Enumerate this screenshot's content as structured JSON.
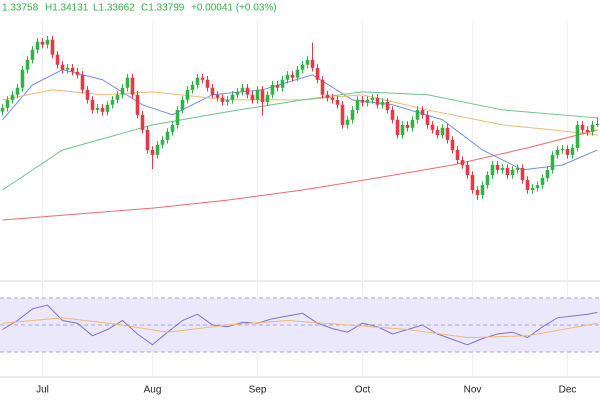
{
  "header": [
    "1.33758",
    "H1.34131",
    "L1.33662",
    "C1.33799",
    "+0.00041 (+0.03%)"
  ],
  "chart_data": [
    {
      "type": "candlestick",
      "up_color": "#2fb344",
      "down_color": "#e53945",
      "xticks": [
        {
          "value": 8,
          "label": "Jul"
        },
        {
          "value": 30,
          "label": "Aug"
        },
        {
          "value": 51,
          "label": "Sep"
        },
        {
          "value": 72,
          "label": "Oct"
        },
        {
          "value": 94,
          "label": "Nov"
        },
        {
          "value": 113,
          "label": "Dec"
        }
      ],
      "open": [
        1.344,
        1.3458,
        1.3497,
        1.3522,
        1.3556,
        1.3644,
        1.3692,
        1.3741,
        1.378,
        1.3766,
        1.379,
        1.3717,
        1.3668,
        1.3644,
        1.3653,
        1.3634,
        1.3619,
        1.3546,
        1.3497,
        1.3448,
        1.3458,
        1.3439,
        1.3473,
        1.3497,
        1.3522,
        1.3556,
        1.3605,
        1.3522,
        1.3424,
        1.3351,
        1.3253,
        1.3229,
        1.3278,
        1.3302,
        1.3341,
        1.3375,
        1.3448,
        1.3497,
        1.3546,
        1.357,
        1.3605,
        1.3595,
        1.3556,
        1.3522,
        1.3507,
        1.3487,
        1.3497,
        1.3522,
        1.3536,
        1.3556,
        1.3522,
        1.3497,
        1.3546,
        1.3487,
        1.3522,
        1.357,
        1.3556,
        1.3595,
        1.3619,
        1.3605,
        1.3644,
        1.3668,
        1.3692,
        1.3653,
        1.3595,
        1.3522,
        1.3507,
        1.3497,
        1.3473,
        1.3375,
        1.34,
        1.3448,
        1.3497,
        1.3483,
        1.3497,
        1.3507,
        1.3473,
        1.3487,
        1.3448,
        1.34,
        1.3326,
        1.3375,
        1.3361,
        1.34,
        1.3448,
        1.3424,
        1.3375,
        1.3351,
        1.3326,
        1.3361,
        1.3302,
        1.3253,
        1.3204,
        1.318,
        1.3131,
        1.3058,
        1.3034,
        1.3082,
        1.3131,
        1.318,
        1.3156,
        1.3165,
        1.3131,
        1.3156,
        1.3165,
        1.3107,
        1.3058,
        1.3068,
        1.3082,
        1.3117,
        1.3156,
        1.3229,
        1.3253,
        1.3258,
        1.3229,
        1.3263,
        1.3375,
        1.3351,
        1.3341,
        1.33758
      ],
      "high": [
        1.3476,
        1.3515,
        1.354,
        1.3574,
        1.3662,
        1.371,
        1.3759,
        1.3798,
        1.3798,
        1.3808,
        1.3808,
        1.3735,
        1.3686,
        1.3671,
        1.3671,
        1.3652,
        1.3637,
        1.3564,
        1.3515,
        1.3476,
        1.3476,
        1.3491,
        1.3515,
        1.354,
        1.3574,
        1.3623,
        1.3623,
        1.354,
        1.3442,
        1.3369,
        1.3271,
        1.3296,
        1.332,
        1.3359,
        1.3393,
        1.3466,
        1.3515,
        1.3564,
        1.3588,
        1.3623,
        1.3623,
        1.3613,
        1.3574,
        1.354,
        1.3525,
        1.3515,
        1.354,
        1.3554,
        1.3574,
        1.3574,
        1.354,
        1.3564,
        1.3564,
        1.354,
        1.3588,
        1.3588,
        1.3613,
        1.3637,
        1.3637,
        1.3662,
        1.3686,
        1.371,
        1.3776,
        1.3671,
        1.3613,
        1.354,
        1.3525,
        1.3515,
        1.3491,
        1.3418,
        1.3466,
        1.3515,
        1.3515,
        1.3515,
        1.3525,
        1.3525,
        1.3505,
        1.3505,
        1.3466,
        1.3418,
        1.3393,
        1.3393,
        1.3418,
        1.3466,
        1.3466,
        1.3442,
        1.3393,
        1.3369,
        1.3379,
        1.3379,
        1.332,
        1.3271,
        1.3222,
        1.3198,
        1.3149,
        1.3076,
        1.31,
        1.3149,
        1.3198,
        1.3198,
        1.3183,
        1.3183,
        1.3174,
        1.3183,
        1.3183,
        1.3125,
        1.3086,
        1.31,
        1.3135,
        1.3174,
        1.3247,
        1.3271,
        1.3276,
        1.3276,
        1.3281,
        1.3393,
        1.3393,
        1.3369,
        1.3394,
        1.34131
      ],
      "low": [
        1.3422,
        1.344,
        1.3479,
        1.3504,
        1.3538,
        1.3626,
        1.3674,
        1.3723,
        1.3748,
        1.3748,
        1.3699,
        1.365,
        1.3626,
        1.3626,
        1.3616,
        1.3601,
        1.3528,
        1.3479,
        1.343,
        1.343,
        1.3421,
        1.3421,
        1.3455,
        1.3479,
        1.3504,
        1.3538,
        1.3504,
        1.3406,
        1.3333,
        1.3235,
        1.316,
        1.3211,
        1.326,
        1.3284,
        1.3323,
        1.3357,
        1.343,
        1.3479,
        1.3528,
        1.3552,
        1.3577,
        1.3538,
        1.3504,
        1.3489,
        1.3469,
        1.3469,
        1.3479,
        1.3504,
        1.3518,
        1.3504,
        1.3479,
        1.3479,
        1.342,
        1.3469,
        1.3504,
        1.3538,
        1.3538,
        1.3577,
        1.3587,
        1.3587,
        1.3626,
        1.365,
        1.3635,
        1.3577,
        1.3504,
        1.3489,
        1.3479,
        1.3455,
        1.3357,
        1.3357,
        1.3382,
        1.343,
        1.3465,
        1.3465,
        1.3479,
        1.3455,
        1.3455,
        1.343,
        1.3382,
        1.3308,
        1.3308,
        1.3343,
        1.3343,
        1.3382,
        1.3406,
        1.3357,
        1.3333,
        1.3308,
        1.3308,
        1.3284,
        1.3235,
        1.3186,
        1.3162,
        1.3113,
        1.304,
        1.301,
        1.3016,
        1.3064,
        1.3113,
        1.3138,
        1.3138,
        1.3113,
        1.3113,
        1.3138,
        1.3089,
        1.304,
        1.304,
        1.305,
        1.3064,
        1.3099,
        1.3138,
        1.3211,
        1.3235,
        1.3211,
        1.3211,
        1.3245,
        1.3333,
        1.3323,
        1.3323,
        1.33662
      ],
      "close": [
        1.3458,
        1.3497,
        1.3522,
        1.3556,
        1.3644,
        1.3692,
        1.3741,
        1.378,
        1.3766,
        1.379,
        1.3717,
        1.3668,
        1.3644,
        1.3653,
        1.3634,
        1.3619,
        1.3546,
        1.3497,
        1.3448,
        1.3458,
        1.3439,
        1.3473,
        1.3497,
        1.3522,
        1.3556,
        1.3605,
        1.3522,
        1.3424,
        1.3351,
        1.3253,
        1.3229,
        1.3278,
        1.3302,
        1.3341,
        1.3375,
        1.3448,
        1.3497,
        1.3546,
        1.357,
        1.3605,
        1.3595,
        1.3556,
        1.3522,
        1.3507,
        1.3487,
        1.3497,
        1.3522,
        1.3536,
        1.3556,
        1.3522,
        1.3497,
        1.3546,
        1.3487,
        1.3522,
        1.357,
        1.3556,
        1.3595,
        1.3619,
        1.3605,
        1.3644,
        1.3668,
        1.3692,
        1.3653,
        1.3595,
        1.3522,
        1.3507,
        1.3497,
        1.3473,
        1.3375,
        1.34,
        1.3448,
        1.3497,
        1.3483,
        1.3497,
        1.3507,
        1.3473,
        1.3487,
        1.3448,
        1.34,
        1.3326,
        1.3375,
        1.3361,
        1.34,
        1.3448,
        1.3424,
        1.3375,
        1.3351,
        1.3326,
        1.3361,
        1.3302,
        1.3253,
        1.3204,
        1.318,
        1.3131,
        1.3058,
        1.3034,
        1.3082,
        1.3131,
        1.318,
        1.3156,
        1.3165,
        1.3131,
        1.3156,
        1.3165,
        1.3107,
        1.3058,
        1.3068,
        1.3082,
        1.3117,
        1.3156,
        1.3229,
        1.3253,
        1.3258,
        1.3229,
        1.3263,
        1.3375,
        1.3351,
        1.3341,
        1.33758,
        1.33799
      ],
      "series": [
        {
          "color": "#6f8ee8",
          "x": [
            0,
            6,
            12,
            20,
            28,
            34,
            42,
            52,
            62,
            70,
            78,
            88,
            96,
            104,
            112,
            119
          ],
          "values": [
            1.34,
            1.357,
            1.3644,
            1.3595,
            1.3473,
            1.3424,
            1.3522,
            1.3546,
            1.3619,
            1.3497,
            1.3473,
            1.34,
            1.3253,
            1.3156,
            1.318,
            1.3253
          ]
        },
        {
          "color": "#f2b872",
          "x": [
            0,
            10,
            20,
            30,
            45,
            60,
            72,
            85,
            100,
            110,
            119
          ],
          "values": [
            1.3497,
            1.3546,
            1.3522,
            1.3536,
            1.3497,
            1.3497,
            1.3522,
            1.3448,
            1.3375,
            1.3351,
            1.3326
          ]
        },
        {
          "color": "#6cc38a",
          "x": [
            0,
            12,
            30,
            45,
            60,
            72,
            85,
            100,
            119
          ],
          "values": [
            1.3058,
            1.3253,
            1.3375,
            1.3439,
            1.3497,
            1.3536,
            1.3522,
            1.3448,
            1.3409
          ]
        },
        {
          "color": "#ef6a6a",
          "x": [
            0,
            30,
            45,
            60,
            75,
            90,
            105,
            119
          ],
          "values": [
            1.2912,
            1.297,
            1.3009,
            1.3058,
            1.3117,
            1.318,
            1.3263,
            1.3351
          ]
        }
      ]
    },
    {
      "type": "line",
      "ylim": [
        0,
        100
      ],
      "levels": [
        20,
        50,
        80
      ],
      "band_color": "#ece8fb",
      "series": [
        {
          "color": "#7d6fd6",
          "x": [
            0,
            3,
            6,
            9,
            12,
            15,
            18,
            21,
            24,
            27,
            30,
            33,
            36,
            39,
            42,
            45,
            48,
            51,
            54,
            57,
            60,
            63,
            66,
            69,
            72,
            75,
            78,
            81,
            84,
            87,
            90,
            93,
            96,
            99,
            102,
            105,
            108,
            111,
            114,
            117,
            119
          ],
          "values": [
            45,
            55,
            68,
            72,
            55,
            52,
            38,
            45,
            55,
            40,
            28,
            42,
            55,
            62,
            50,
            48,
            53,
            52,
            57,
            60,
            63,
            52,
            46,
            42,
            52,
            48,
            40,
            45,
            50,
            40,
            34,
            28,
            35,
            40,
            42,
            36,
            48,
            58,
            60,
            62,
            64
          ]
        },
        {
          "color": "#f2b872",
          "x": [
            0,
            12,
            24,
            33,
            45,
            57,
            69,
            81,
            93,
            105,
            119
          ],
          "values": [
            52,
            58,
            50,
            42,
            50,
            55,
            50,
            45,
            36,
            38,
            52
          ]
        }
      ]
    }
  ]
}
